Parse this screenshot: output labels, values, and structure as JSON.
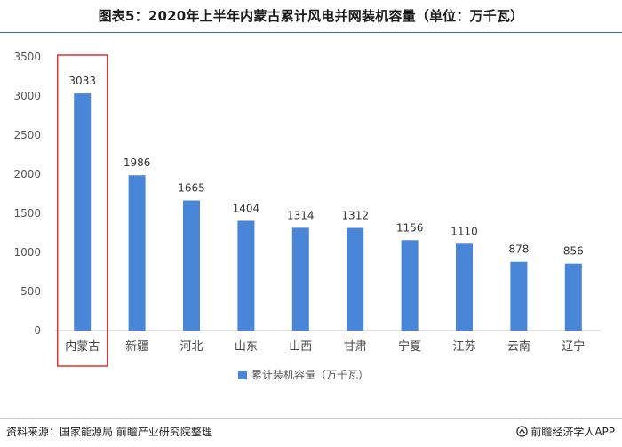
{
  "title": "图表5：2020年上半年内蒙古累计风电并网装机容量（单位：万千瓦）",
  "footer": {
    "source": "资料来源：国家能源局  前瞻产业研究院整理",
    "brand": "前瞻经济学人APP"
  },
  "colors": {
    "bar": "#4a86d8",
    "highlight_box": "#e03030",
    "title_rule": "#3f6fb3"
  },
  "icons": {
    "brand": "qianzhan-logo-icon"
  },
  "chart_data": {
    "type": "bar",
    "categories": [
      "内蒙古",
      "新疆",
      "河北",
      "山东",
      "山西",
      "甘肃",
      "宁夏",
      "江苏",
      "云南",
      "辽宁"
    ],
    "series": [
      {
        "name": "累计装机容量（万千瓦）",
        "values": [
          3033,
          1986,
          1665,
          1404,
          1314,
          1312,
          1156,
          1110,
          878,
          856
        ]
      }
    ],
    "ylim": [
      0,
      3500
    ],
    "yticks": [
      0,
      500,
      1000,
      1500,
      2000,
      2500,
      3000,
      3500
    ],
    "highlight_category": "内蒙古",
    "data_labels": true,
    "grid": false,
    "legend_position": "bottom-center"
  }
}
